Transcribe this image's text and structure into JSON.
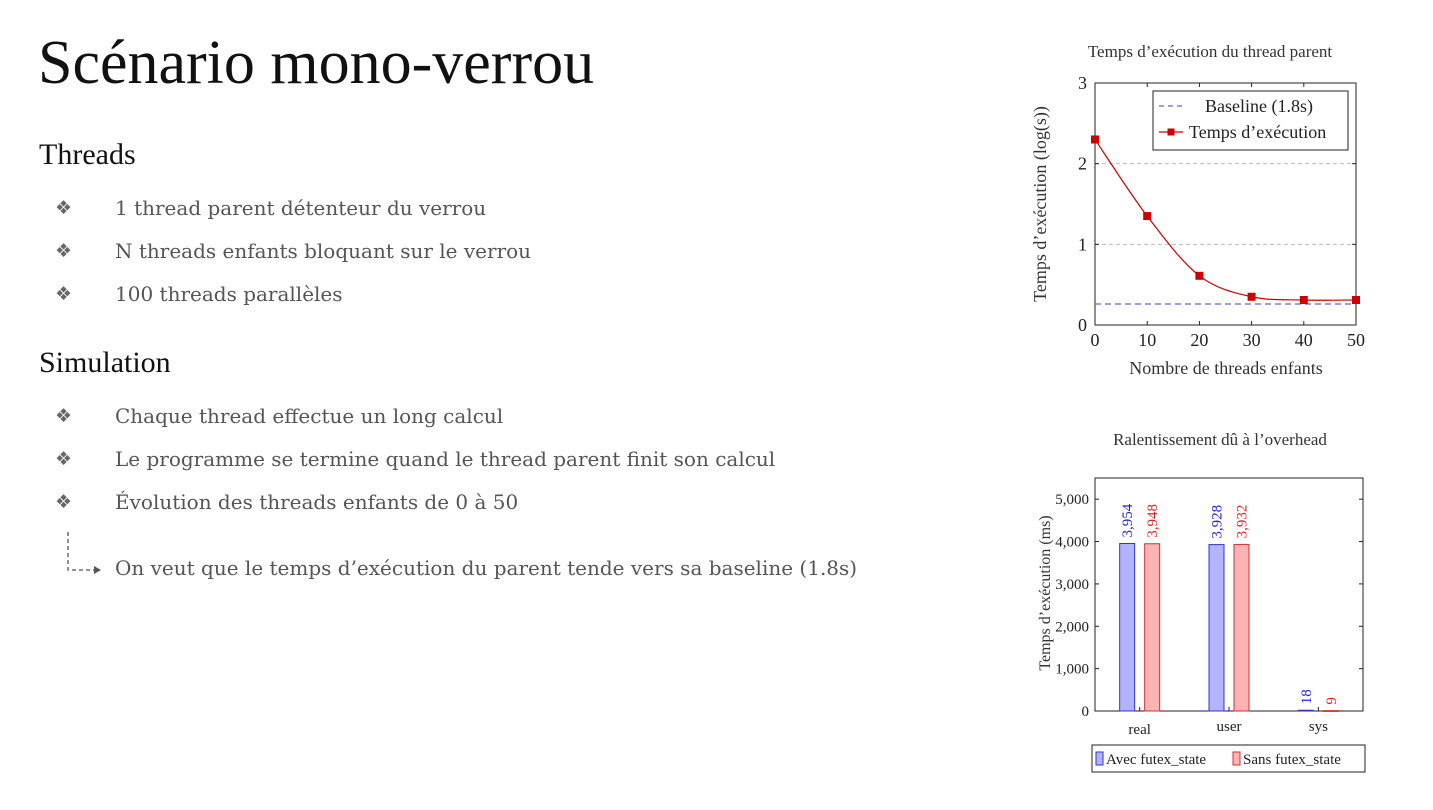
{
  "slide": {
    "title": "Scénario mono-verrou",
    "sections": [
      {
        "heading": "Threads",
        "items": [
          "1 thread parent détenteur du verrou",
          "N threads enfants bloquant sur le verrou",
          "100 threads parallèles"
        ]
      },
      {
        "heading": "Simulation",
        "items": [
          "Chaque thread effectue un long calcul",
          "Le programme se termine quand le thread parent finit son calcul",
          "Évolution des threads enfants de 0 à 50"
        ]
      }
    ],
    "conclusion": "On veut que le temps d’exécution du parent tende vers sa baseline (1.8s)",
    "bullet_glyph": "❖"
  },
  "chart_data": [
    {
      "type": "line",
      "title": "Temps d’exécution du thread parent",
      "xlabel": "Nombre de threads enfants",
      "ylabel": "Temps d’exécution (log(s))",
      "xlim": [
        0,
        50
      ],
      "ylim": [
        0,
        3
      ],
      "xticks": [
        0,
        10,
        20,
        30,
        40,
        50
      ],
      "yticks": [
        0,
        1,
        2,
        3
      ],
      "grid": "horizontal dashed",
      "legend": "top-right",
      "series": [
        {
          "name": "Baseline (1.8s)",
          "style": "dashed",
          "color": "#6666cc",
          "x": [
            0,
            50
          ],
          "y": [
            0.26,
            0.26
          ]
        },
        {
          "name": "Temps d’exécution",
          "style": "solid-square-markers",
          "color": "#cc0000",
          "x": [
            0,
            10,
            20,
            30,
            40,
            50
          ],
          "y": [
            2.3,
            1.35,
            0.61,
            0.35,
            0.31,
            0.31
          ]
        }
      ]
    },
    {
      "type": "bar",
      "title": "Ralentissement dû à l’overhead",
      "ylabel": "Temps d’exécution (ms)",
      "categories": [
        "real",
        "user",
        "sys"
      ],
      "ylim": [
        0,
        5500
      ],
      "yticks": [
        0,
        1000,
        2000,
        3000,
        4000,
        5000
      ],
      "ytick_labels": [
        "0",
        "1,000",
        "2,000",
        "3,000",
        "4,000",
        "5,000"
      ],
      "legend": "bottom",
      "series": [
        {
          "name": "Avec futex_state",
          "fill": "#b3b3ff",
          "stroke": "#3333cc",
          "label_color": "#2222cc",
          "values": [
            3954,
            3928,
            18
          ],
          "labels": [
            "3,954",
            "3,928",
            "18"
          ]
        },
        {
          "name": "Sans futex_state",
          "fill": "#ffb3b3",
          "stroke": "#cc3333",
          "label_color": "#dd2222",
          "values": [
            3948,
            3932,
            9
          ],
          "labels": [
            "3,948",
            "3,932",
            "9"
          ]
        }
      ]
    }
  ]
}
